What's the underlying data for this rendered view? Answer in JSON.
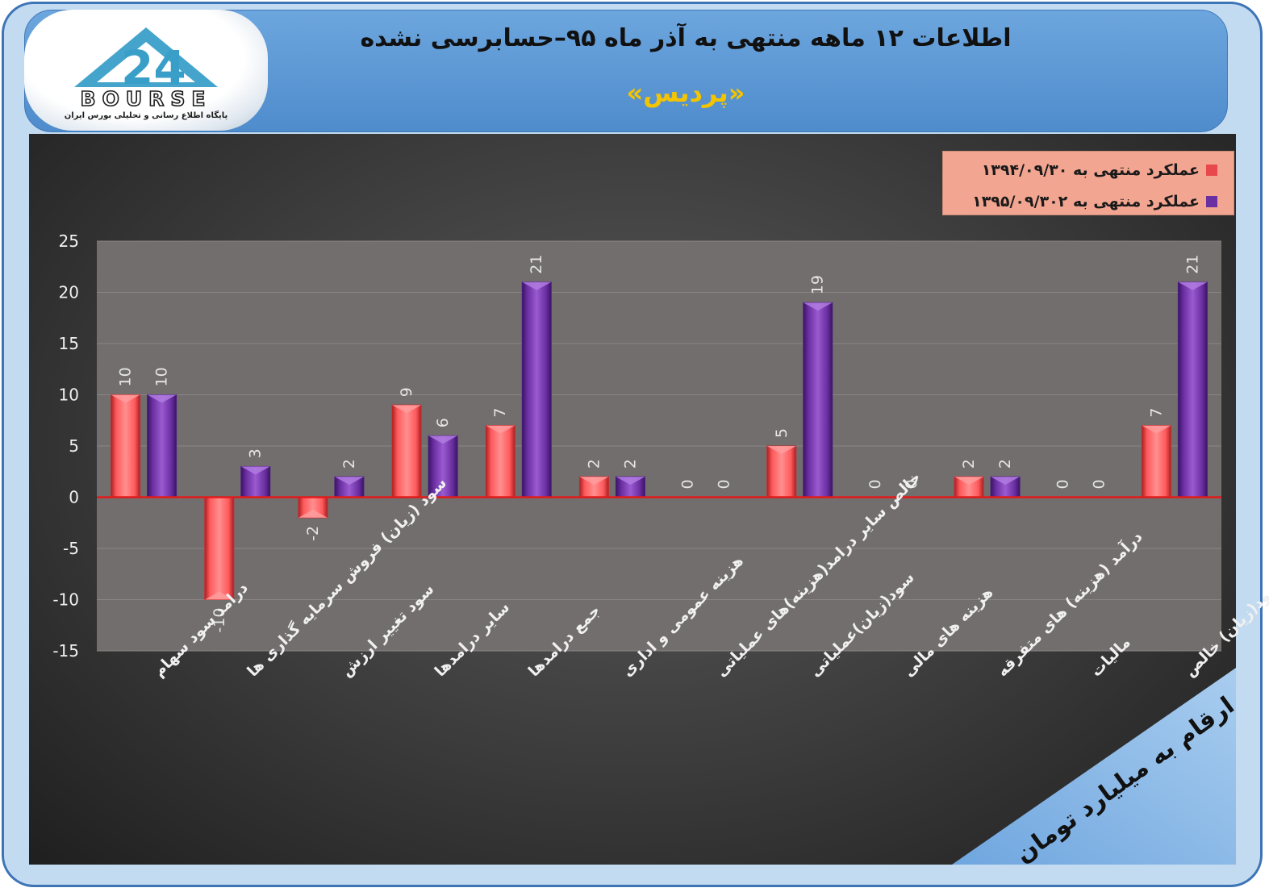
{
  "header": {
    "title": "اطلاعات ۱۲ ماهه منتهی به آذر ماه ۹۵–حسابرسی نشده",
    "subtitle": "«پردیس»"
  },
  "logo": {
    "text": "BOURSE",
    "subtext": "پایگاه اطلاع رسانی و تحلیلی بورس ایران"
  },
  "units_banner": "ارقام به میلیارد تومان",
  "colors": {
    "series1": "#e8484b",
    "series2": "#6a2fa0",
    "zero_line": "#e21b1b",
    "plot_bg": "#736e6e"
  },
  "chart_data": {
    "type": "bar",
    "categories": [
      "درامد سود سهام",
      "سود (زیان) فروش سرمایه گذاری ها",
      "سود تغییر ارزش",
      "سایر درامدها",
      "جمع درامدها",
      "هزینه عمومی و اداری",
      "خالص سایر درامد(هزینه)های عملیاتی",
      "سود(زیان)عملیاتی",
      "هزینه های مالی",
      "درآمد (هزینه) های متفرقه",
      "مالیات",
      "سود(زیان) خالص"
    ],
    "series": [
      {
        "name": "عملکرد منتهی به ۱۳۹۴/۰۹/۳۰",
        "values": [
          10,
          -10,
          -2,
          9,
          7,
          2,
          0,
          5,
          0,
          2,
          0,
          7
        ]
      },
      {
        "name": "عملکرد منتهی به ۱۳۹۵/۰۹/۳۰۲",
        "values": [
          10,
          3,
          2,
          6,
          21,
          2,
          0,
          19,
          0,
          2,
          0,
          21
        ]
      }
    ],
    "ylim": [
      -15,
      25
    ],
    "yticks": [
      -15,
      -10,
      -5,
      0,
      5,
      10,
      15,
      20,
      25
    ],
    "legend_position": "top-right",
    "grid": true
  }
}
